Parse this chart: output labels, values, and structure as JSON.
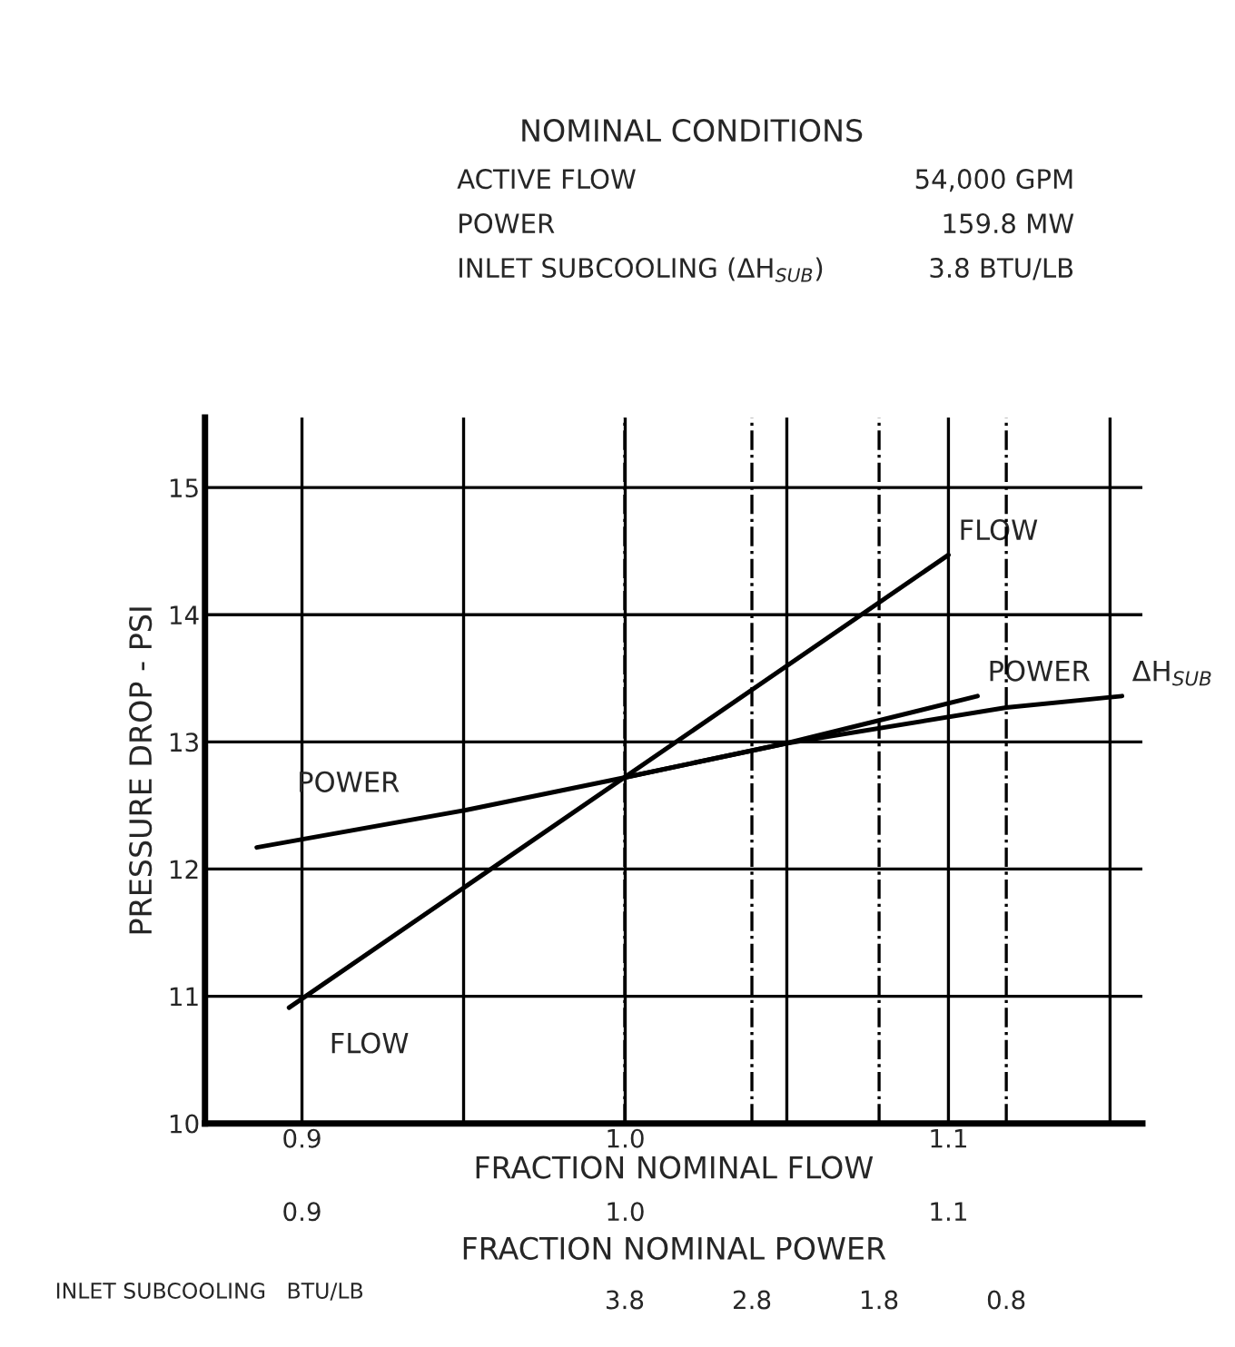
{
  "chart_data": {
    "type": "line",
    "title": "NOMINAL CONDITIONS",
    "annotations": [
      "ACTIVE FLOW",
      "54,000 GPM",
      "POWER",
      "159.8 MW",
      "INLET SUBCOOLING (ΔH$_{SUB}$)",
      "3.8 BTU/LB",
      "FRACTION NOMINAL POWER",
      "0.9",
      "1.0",
      "1.1"
    ],
    "xlabel": "FRACTION NOMINAL FLOW",
    "x2label": "INLET SUBCOOLING   BTU/LB",
    "ylabel": "PRESSURE DROP - PSI",
    "xlim": [
      0.87,
      1.16
    ],
    "xticks": [
      0.9,
      {
        "value": 0.95,
        "label": null
      },
      {
        "value": 1.0,
        "label": "1.0"
      },
      {
        "value": 1.05,
        "label": null
      },
      1.1,
      {
        "value": 1.15,
        "label": null
      }
    ],
    "x2lim": [
      7.1,
      -0.27
    ],
    "x2ticks": [
      3.8,
      2.8,
      1.8,
      0.8
    ],
    "ylim": [
      10,
      15.55
    ],
    "yticks": [
      10,
      11,
      12,
      13,
      14,
      15
    ],
    "grid": true,
    "legend": false,
    "marker": "none",
    "line_style": "solid",
    "series": [
      {
        "name": "FLOW",
        "color": "#000000",
        "x": [
          0.896,
          1.1
        ],
        "values": [
          10.91,
          14.47
        ]
      },
      {
        "name": "POWER",
        "color": "#000000",
        "x": [
          0.886,
          0.95,
          1.0,
          1.05,
          1.109
        ],
        "values": [
          12.17,
          12.46,
          12.72,
          12.99,
          13.36
        ]
      },
      {
        "name": "ΔH$_{SUB}$",
        "color": "#000000",
        "axis": "x2",
        "x": [
          3.8,
          2.52,
          0.8,
          -0.11
        ],
        "values": [
          12.72,
          12.99,
          13.27,
          13.36
        ]
      }
    ]
  }
}
